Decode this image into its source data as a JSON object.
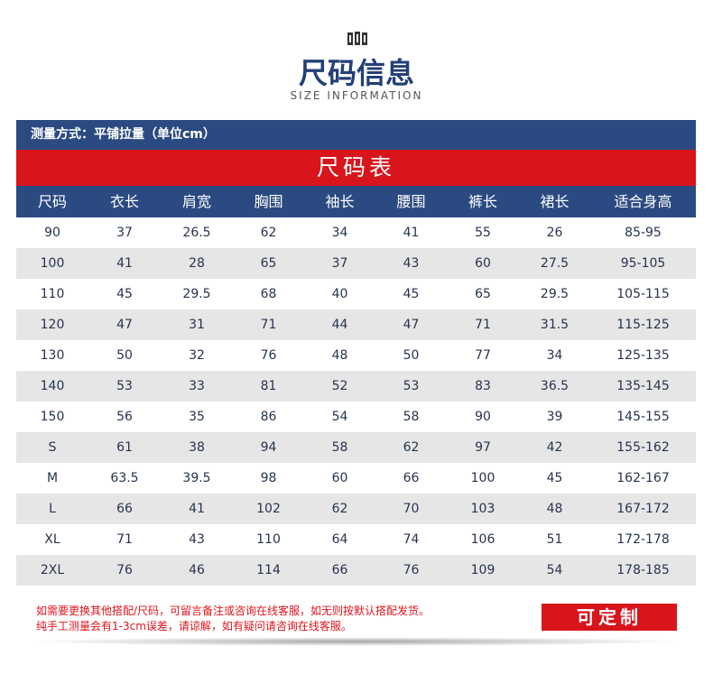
{
  "header": {
    "title": "尺码信息",
    "subtitle": "SIZE INFORMATION"
  },
  "table": {
    "note": "测量方式：平铺拉量（单位cm）",
    "title": "尺码表",
    "columns": [
      "尺码",
      "衣长",
      "肩宽",
      "胸围",
      "袖长",
      "腰围",
      "裤长",
      "裙长",
      "适合身高"
    ],
    "rows": [
      [
        "90",
        "37",
        "26.5",
        "62",
        "34",
        "41",
        "55",
        "26",
        "85-95"
      ],
      [
        "100",
        "41",
        "28",
        "65",
        "37",
        "43",
        "60",
        "27.5",
        "95-105"
      ],
      [
        "110",
        "45",
        "29.5",
        "68",
        "40",
        "45",
        "65",
        "29.5",
        "105-115"
      ],
      [
        "120",
        "47",
        "31",
        "71",
        "44",
        "47",
        "71",
        "31.5",
        "115-125"
      ],
      [
        "130",
        "50",
        "32",
        "76",
        "48",
        "50",
        "77",
        "34",
        "125-135"
      ],
      [
        "140",
        "53",
        "33",
        "81",
        "52",
        "53",
        "83",
        "36.5",
        "135-145"
      ],
      [
        "150",
        "56",
        "35",
        "86",
        "54",
        "58",
        "90",
        "39",
        "145-155"
      ],
      [
        "S",
        "61",
        "38",
        "94",
        "58",
        "62",
        "97",
        "42",
        "155-162"
      ],
      [
        "M",
        "63.5",
        "39.5",
        "98",
        "60",
        "66",
        "100",
        "45",
        "162-167"
      ],
      [
        "L",
        "66",
        "41",
        "102",
        "62",
        "70",
        "103",
        "48",
        "167-172"
      ],
      [
        "XL",
        "71",
        "43",
        "110",
        "64",
        "74",
        "106",
        "51",
        "172-178"
      ],
      [
        "2XL",
        "76",
        "46",
        "114",
        "66",
        "76",
        "109",
        "54",
        "178-185"
      ]
    ]
  },
  "footer": {
    "lines": [
      "如需要更换其他搭配/尺码，可留言备注或咨询在线客服，如无则按默认搭配发货。",
      "纯手工测量会有1-3cm误差，请谅解，如有疑问请咨询在线客服。"
    ],
    "button": "可定制"
  }
}
